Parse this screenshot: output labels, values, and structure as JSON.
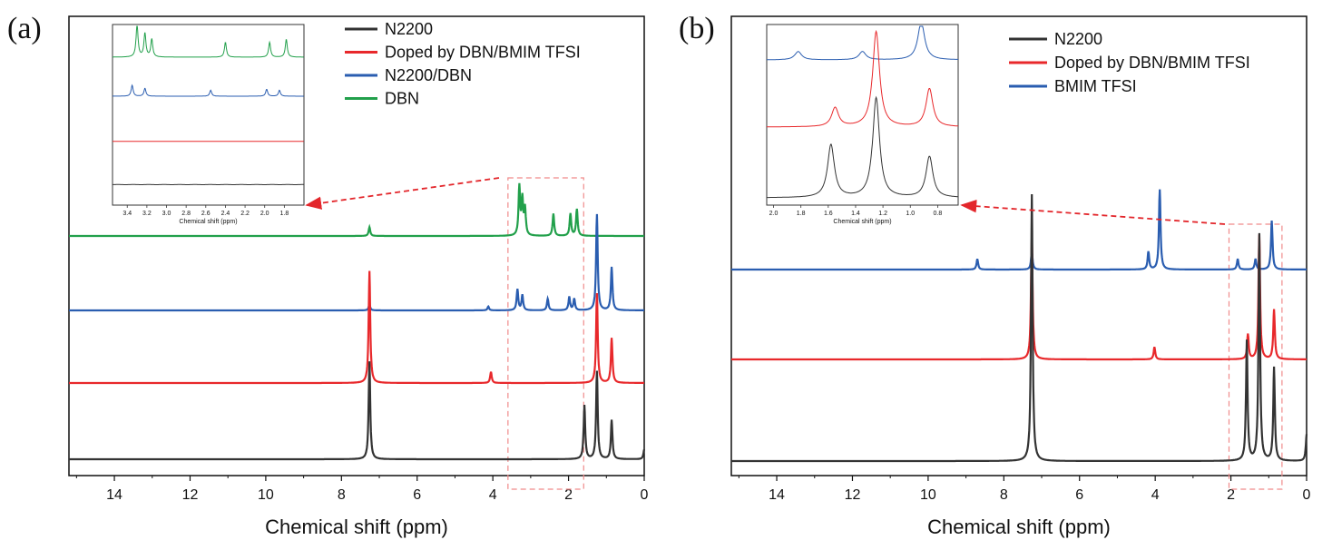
{
  "panels": [
    {
      "label": "(a)"
    },
    {
      "label": "(b)"
    }
  ],
  "colors": {
    "N2200": "#333333",
    "Doped by DBN/BMIM TFSI": "#e8282b",
    "N2200/DBN": "#2a5db0",
    "DBN": "#22a04b",
    "BMIM TFSI": "#2a5db0",
    "zoom_box": "#f08a8a",
    "arrow": "#e3262b"
  },
  "chart_data": [
    {
      "type": "line",
      "panel": "(a)",
      "xlabel": "Chemical shift (ppm)",
      "ylabel": "",
      "x_reversed": true,
      "xlim": [
        15.2,
        0
      ],
      "xticks": [
        "14",
        "12",
        "10",
        "8",
        "6",
        "4",
        "2",
        "0"
      ],
      "x_tick_values": [
        14,
        12,
        10,
        8,
        6,
        4,
        2,
        0
      ],
      "legend": [
        "N2200",
        "Doped by DBN/BMIM TFSI",
        "N2200/DBN",
        "DBN"
      ],
      "legend_position": "top-right",
      "series": [
        {
          "name": "DBN",
          "peaks": [
            [
              7.26,
              0.1
            ],
            [
              3.3,
              0.55
            ],
            [
              3.22,
              0.4
            ],
            [
              3.15,
              0.3
            ],
            [
              2.4,
              0.25
            ],
            [
              1.95,
              0.25
            ],
            [
              1.78,
              0.3
            ]
          ]
        },
        {
          "name": "N2200/DBN",
          "peaks": [
            [
              7.26,
              0.06
            ],
            [
              4.12,
              0.04
            ],
            [
              3.35,
              0.22
            ],
            [
              3.22,
              0.16
            ],
            [
              2.55,
              0.12
            ],
            [
              1.98,
              0.14
            ],
            [
              1.85,
              0.12
            ],
            [
              1.25,
              1.0
            ],
            [
              0.86,
              0.45
            ]
          ]
        },
        {
          "name": "Doped by DBN/BMIM TFSI",
          "peaks": [
            [
              7.26,
              1.0
            ],
            [
              4.05,
              0.1
            ],
            [
              1.25,
              0.8
            ],
            [
              0.86,
              0.4
            ]
          ]
        },
        {
          "name": "N2200",
          "peaks": [
            [
              7.26,
              1.0
            ],
            [
              1.58,
              0.55
            ],
            [
              1.25,
              0.9
            ],
            [
              0.86,
              0.4
            ],
            [
              0.0,
              0.1
            ]
          ]
        }
      ],
      "zoom_region_ppm": [
        3.6,
        1.6
      ],
      "inset": {
        "xlabel": "Chemical shift (ppm)",
        "xticks": [
          "3.4",
          "3.2",
          "3.0",
          "2.8",
          "2.6",
          "2.4",
          "2.2",
          "2.0",
          "1.8"
        ],
        "x_tick_values": [
          3.4,
          3.2,
          3.0,
          2.8,
          2.6,
          2.4,
          2.2,
          2.0,
          1.8
        ],
        "xlim": [
          3.55,
          1.6
        ]
      }
    },
    {
      "type": "line",
      "panel": "(b)",
      "xlabel": "Chemical shift (ppm)",
      "ylabel": "",
      "x_reversed": true,
      "xlim": [
        15.2,
        0
      ],
      "xticks": [
        "14",
        "12",
        "10",
        "8",
        "6",
        "4",
        "2",
        "0"
      ],
      "x_tick_values": [
        14,
        12,
        10,
        8,
        6,
        4,
        2,
        0
      ],
      "legend": [
        "N2200",
        "Doped by DBN/BMIM TFSI",
        "BMIM TFSI"
      ],
      "legend_position": "top-right",
      "series": [
        {
          "name": "BMIM TFSI",
          "peaks": [
            [
              8.7,
              0.12
            ],
            [
              7.26,
              0.2
            ],
            [
              4.18,
              0.2
            ],
            [
              3.88,
              0.9
            ],
            [
              1.82,
              0.12
            ],
            [
              1.35,
              0.12
            ],
            [
              0.92,
              0.55
            ]
          ]
        },
        {
          "name": "Doped by DBN/BMIM TFSI",
          "peaks": [
            [
              7.26,
              1.0
            ],
            [
              4.02,
              0.1
            ],
            [
              1.55,
              0.2
            ],
            [
              1.25,
              1.0
            ],
            [
              0.86,
              0.4
            ]
          ]
        },
        {
          "name": "N2200",
          "peaks": [
            [
              7.26,
              1.0
            ],
            [
              1.58,
              0.45
            ],
            [
              1.25,
              0.85
            ],
            [
              0.86,
              0.35
            ],
            [
              0.0,
              0.1
            ]
          ]
        }
      ],
      "zoom_region_ppm": [
        2.05,
        0.65
      ],
      "inset": {
        "xlabel": "Chemical shift (ppm)",
        "xticks": [
          "2.0",
          "1.8",
          "1.6",
          "1.4",
          "1.2",
          "1.0",
          "0.8"
        ],
        "x_tick_values": [
          2.0,
          1.8,
          1.6,
          1.4,
          1.2,
          1.0,
          0.8
        ],
        "xlim": [
          2.05,
          0.65
        ]
      }
    }
  ]
}
